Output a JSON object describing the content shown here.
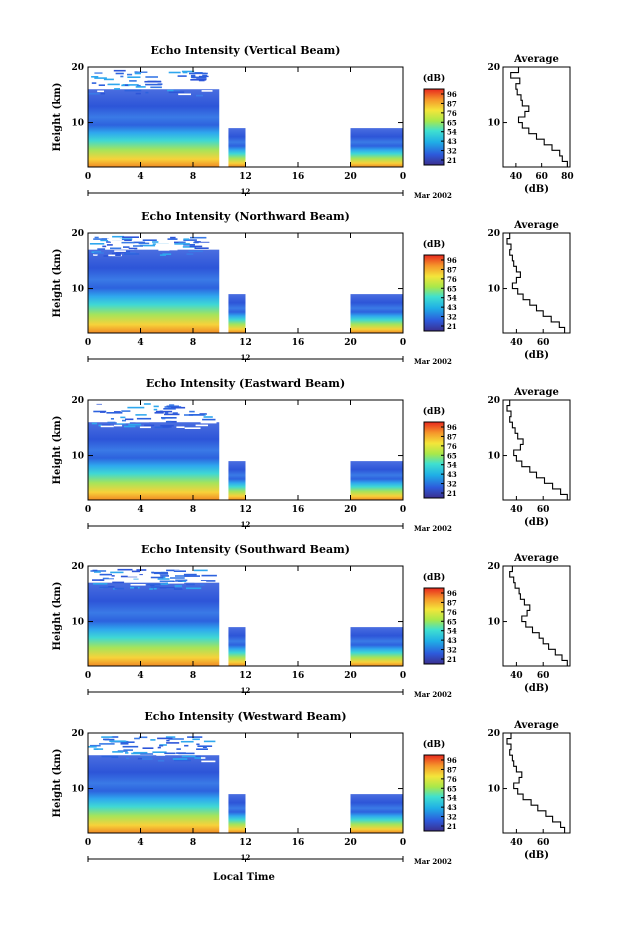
{
  "figure": {
    "xlabel": "Local Time",
    "date_label": "Mar 2002",
    "colorbar_unit": "(dB)",
    "colorbar_ticks": [
      "96",
      "87",
      "76",
      "65",
      "54",
      "43",
      "32",
      "21"
    ],
    "avg_title": "Average",
    "avg_xlabel": "(dB)"
  },
  "chart_data": [
    {
      "type": "heatmap",
      "title": "Echo Intensity (Vertical Beam)",
      "ylabel": "Height (km)",
      "x_ticks": [
        "0",
        "4",
        "8",
        "12",
        "16",
        "20",
        "0"
      ],
      "date_tick": "12",
      "y_ticks": [
        "20",
        "10"
      ],
      "xlim": [
        0,
        24
      ],
      "ylim": [
        2,
        20
      ],
      "data_blocks": [
        [
          0,
          10
        ],
        [
          10.7,
          12
        ],
        [
          20,
          24
        ]
      ],
      "colorbar_range_db": [
        21,
        96
      ],
      "average_profile": {
        "x_ticks": [
          "40",
          "60",
          "80"
        ],
        "xlim": [
          30,
          82
        ],
        "y_ticks": [
          "20",
          "10"
        ],
        "height_km": [
          2,
          3,
          4,
          5,
          6,
          7,
          8,
          9,
          10,
          11,
          12,
          13,
          14,
          15,
          16,
          17,
          18,
          19,
          20
        ],
        "db": [
          80,
          76,
          74,
          68,
          62,
          56,
          50,
          45,
          42,
          47,
          50,
          45,
          44,
          41,
          40,
          43,
          36,
          42,
          37
        ]
      }
    },
    {
      "type": "heatmap",
      "title": "Echo Intensity (Northward Beam)",
      "ylabel": "Height (km)",
      "x_ticks": [
        "0",
        "4",
        "8",
        "12",
        "16",
        "20",
        "0"
      ],
      "date_tick": "12",
      "y_ticks": [
        "20",
        "10"
      ],
      "xlim": [
        0,
        24
      ],
      "ylim": [
        2,
        20
      ],
      "data_blocks": [
        [
          0,
          10
        ],
        [
          10.7,
          12
        ],
        [
          20,
          24
        ]
      ],
      "colorbar_range_db": [
        21,
        96
      ],
      "average_profile": {
        "x_ticks": [
          "40",
          "60"
        ],
        "xlim": [
          30,
          80
        ],
        "y_ticks": [
          "20",
          "10"
        ],
        "height_km": [
          2,
          3,
          4,
          5,
          6,
          7,
          8,
          9,
          10,
          11,
          12,
          13,
          14,
          15,
          16,
          17,
          18,
          19,
          20
        ],
        "db": [
          76,
          72,
          66,
          60,
          55,
          50,
          45,
          41,
          37,
          40,
          43,
          40,
          38,
          37,
          35,
          36,
          33,
          35,
          32
        ]
      }
    },
    {
      "type": "heatmap",
      "title": "Echo Intensity (Eastward Beam)",
      "ylabel": "Height (km)",
      "x_ticks": [
        "0",
        "4",
        "8",
        "12",
        "16",
        "20",
        "0"
      ],
      "date_tick": "12",
      "y_ticks": [
        "20",
        "10"
      ],
      "xlim": [
        0,
        24
      ],
      "ylim": [
        2,
        20
      ],
      "data_blocks": [
        [
          0,
          10
        ],
        [
          10.7,
          12
        ],
        [
          20,
          24
        ]
      ],
      "colorbar_range_db": [
        21,
        96
      ],
      "average_profile": {
        "x_ticks": [
          "40",
          "60"
        ],
        "xlim": [
          30,
          80
        ],
        "y_ticks": [
          "20",
          "10"
        ],
        "height_km": [
          2,
          3,
          4,
          5,
          6,
          7,
          8,
          9,
          10,
          11,
          12,
          13,
          14,
          15,
          16,
          17,
          18,
          19,
          20
        ],
        "db": [
          78,
          73,
          67,
          61,
          55,
          50,
          44,
          40,
          38,
          43,
          45,
          41,
          39,
          37,
          35,
          36,
          33,
          35,
          32
        ]
      }
    },
    {
      "type": "heatmap",
      "title": "Echo Intensity (Southward Beam)",
      "ylabel": "Height (km)",
      "x_ticks": [
        "0",
        "4",
        "8",
        "12",
        "16",
        "20",
        "0"
      ],
      "date_tick": "12",
      "y_ticks": [
        "20",
        "10"
      ],
      "xlim": [
        0,
        24
      ],
      "ylim": [
        2,
        20
      ],
      "data_blocks": [
        [
          0,
          10
        ],
        [
          10.7,
          12
        ],
        [
          20,
          24
        ]
      ],
      "colorbar_range_db": [
        21,
        96
      ],
      "average_profile": {
        "x_ticks": [
          "40",
          "60"
        ],
        "xlim": [
          30,
          80
        ],
        "y_ticks": [
          "20",
          "10"
        ],
        "height_km": [
          2,
          3,
          4,
          5,
          6,
          7,
          8,
          9,
          10,
          11,
          12,
          13,
          14,
          15,
          16,
          17,
          18,
          19,
          20
        ],
        "db": [
          78,
          74,
          69,
          64,
          60,
          57,
          52,
          47,
          44,
          48,
          50,
          46,
          43,
          42,
          39,
          38,
          35,
          37,
          33
        ]
      }
    },
    {
      "type": "heatmap",
      "title": "Echo Intensity (Westward Beam)",
      "ylabel": "Height (km)",
      "x_ticks": [
        "0",
        "4",
        "8",
        "12",
        "16",
        "20",
        "0"
      ],
      "date_tick": "12",
      "y_ticks": [
        "20",
        "10"
      ],
      "xlim": [
        0,
        24
      ],
      "ylim": [
        2,
        20
      ],
      "data_blocks": [
        [
          0,
          10
        ],
        [
          10.7,
          12
        ],
        [
          20,
          24
        ]
      ],
      "colorbar_range_db": [
        21,
        96
      ],
      "average_profile": {
        "x_ticks": [
          "40",
          "60"
        ],
        "xlim": [
          30,
          80
        ],
        "y_ticks": [
          "20",
          "10"
        ],
        "height_km": [
          2,
          3,
          4,
          5,
          6,
          7,
          8,
          9,
          10,
          11,
          12,
          13,
          14,
          15,
          16,
          17,
          18,
          19,
          20
        ],
        "db": [
          76,
          73,
          67,
          62,
          56,
          51,
          45,
          41,
          38,
          42,
          44,
          40,
          38,
          37,
          35,
          36,
          33,
          36,
          32
        ]
      }
    }
  ]
}
